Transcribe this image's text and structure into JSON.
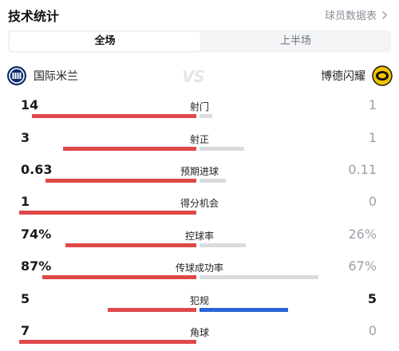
{
  "header": {
    "title": "技术统计",
    "link_label": "球员数据表"
  },
  "tabs": [
    {
      "label": "全场",
      "active": true
    },
    {
      "label": "上半场",
      "active": false
    }
  ],
  "teams": {
    "home": "国际米兰",
    "away": "博德闪耀",
    "vs": "VS"
  },
  "colors": {
    "home_bar": "#e04848",
    "away_bar": "#d9dcdf",
    "away_bar_highlight": "#2a63d8"
  },
  "stats": [
    {
      "label": "射门",
      "home": "14",
      "away": "1",
      "home_frac": 0.93,
      "away_frac": 0.07
    },
    {
      "label": "射正",
      "home": "3",
      "away": "1",
      "home_frac": 0.75,
      "away_frac": 0.25
    },
    {
      "label": "预期进球",
      "home": "0.63",
      "away": "0.11",
      "home_frac": 0.85,
      "away_frac": 0.15
    },
    {
      "label": "得分机会",
      "home": "1",
      "away": "0",
      "home_frac": 1.0,
      "away_frac": 0.0
    },
    {
      "label": "控球率",
      "home": "74%",
      "away": "26%",
      "home_frac": 0.74,
      "away_frac": 0.26
    },
    {
      "label": "传球成功率",
      "home": "87%",
      "away": "67%",
      "home_frac": 0.87,
      "away_frac": 0.67
    },
    {
      "label": "犯规",
      "home": "5",
      "away": "5",
      "home_frac": 0.5,
      "away_frac": 0.5,
      "away_highlight": true
    },
    {
      "label": "角球",
      "home": "7",
      "away": "0",
      "home_frac": 1.0,
      "away_frac": 0.0
    }
  ]
}
